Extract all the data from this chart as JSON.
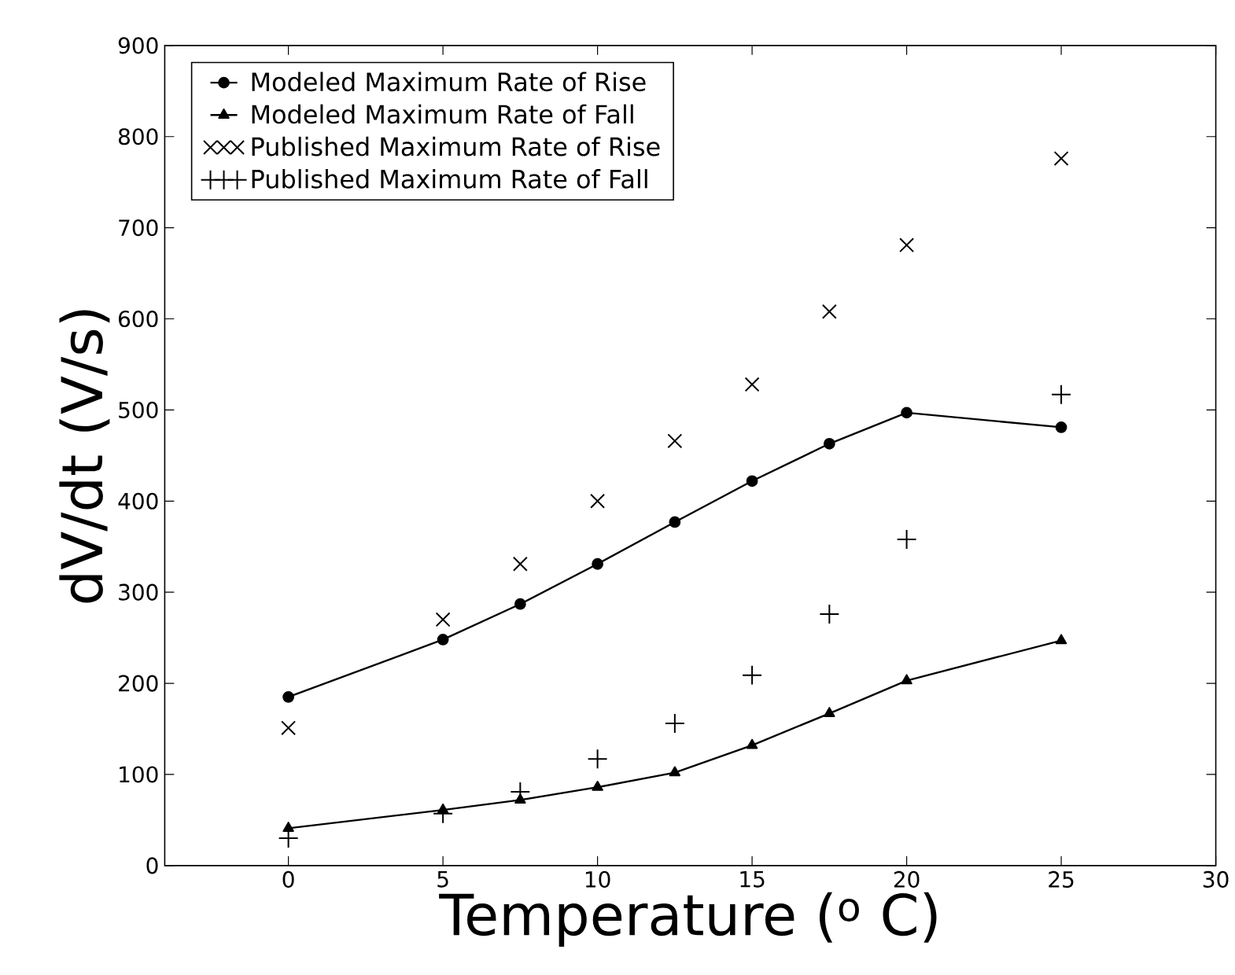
{
  "chart_data": {
    "type": "line",
    "xlabel": "Temperature ($^{o}$ C)",
    "ylabel": "dV/dt (V/s)",
    "x": [
      0,
      5,
      7.5,
      10,
      12.5,
      15,
      17.5,
      20,
      25
    ],
    "series": [
      {
        "name": "Modeled Maximum Rate of Rise",
        "marker": "circle",
        "color": "#000000",
        "values": [
          185,
          248,
          287,
          331,
          377,
          422,
          463,
          497,
          481
        ]
      },
      {
        "name": "Modeled Maximum Rate of Fall",
        "marker": "triangle",
        "color": "#000000",
        "values": [
          41,
          61,
          72,
          86,
          102,
          132,
          167,
          203,
          247
        ]
      },
      {
        "name": "Published Maximum Rate of Rise",
        "type": "scatter",
        "marker": "cross",
        "color": "#000000",
        "values": [
          151,
          270,
          331,
          400,
          466,
          528,
          608,
          681,
          776
        ]
      },
      {
        "name": "Published Maximum Rate of Fall",
        "type": "scatter",
        "marker": "plus",
        "color": "#000000",
        "values": [
          30,
          57,
          81,
          117,
          156,
          209,
          276,
          358,
          517
        ]
      }
    ],
    "xlim": [
      -4,
      30
    ],
    "ylim": [
      0,
      900
    ],
    "xticks": [
      0,
      5,
      10,
      15,
      20,
      25,
      30
    ],
    "yticks": [
      0,
      100,
      200,
      300,
      400,
      500,
      600,
      700,
      800,
      900
    ],
    "grid": false,
    "legend": "top left",
    "line_style": "solid"
  }
}
